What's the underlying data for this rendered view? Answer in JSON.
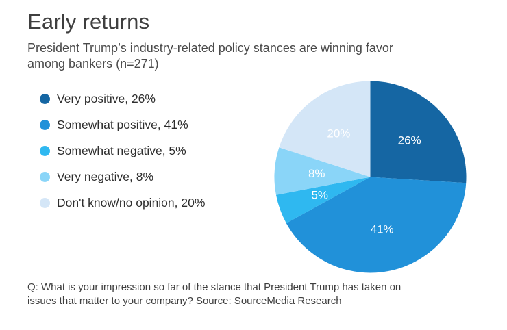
{
  "header": {
    "title": "Early returns",
    "subtitle": "President Trump’s industry-related policy stances are winning favor among bankers (n=271)"
  },
  "chart_data": {
    "type": "pie",
    "title": "Early returns",
    "subtitle": "President Trump’s industry-related policy stances are winning favor among bankers (n=271)",
    "sample_note": "n=271",
    "start_angle_deg": 0,
    "direction": "clockwise",
    "legend_position": "left",
    "label_color": "#ffffff",
    "slices": [
      {
        "label": "Very positive",
        "value": 26,
        "display": "26%",
        "legend_label": "Very positive, 26%",
        "color": "#1566a3"
      },
      {
        "label": "Somewhat positive",
        "value": 41,
        "display": "41%",
        "legend_label": "Somewhat positive, 41%",
        "color": "#2191d9"
      },
      {
        "label": "Somewhat negative",
        "value": 5,
        "display": "5%",
        "legend_label": "Somewhat negative, 5%",
        "color": "#2fb8f0"
      },
      {
        "label": "Very negative",
        "value": 8,
        "display": "8%",
        "legend_label": "Very negative, 8%",
        "color": "#8ad5f8"
      },
      {
        "label": "Don't know/no opinion",
        "value": 20,
        "display": "20%",
        "legend_label": "Don't know/no opinion, 20%",
        "color": "#d4e6f7"
      }
    ]
  },
  "footer": {
    "text": "Q: What is your impression so far of the stance that President Trump has taken on issues that matter to your company? Source: SourceMedia Research"
  }
}
